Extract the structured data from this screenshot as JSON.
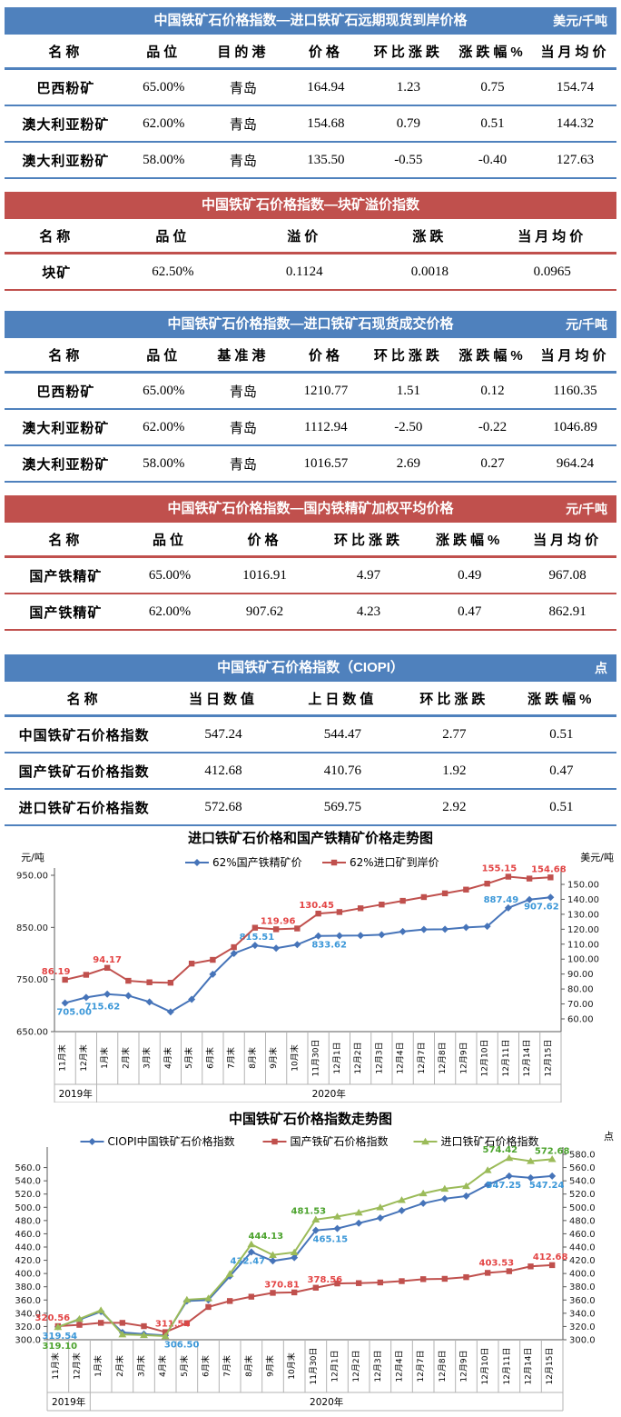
{
  "tables": [
    {
      "theme": "blue",
      "title": "中国铁矿石价格指数—进口铁矿石远期现货到岸价格",
      "unit": "美元/千吨",
      "columns": [
        "名称",
        "品位",
        "目的港",
        "价格",
        "环比涨跌",
        "涨跌幅%",
        "当月均价"
      ],
      "rows": [
        [
          "巴西粉矿",
          "65.00%",
          "青岛",
          "164.94",
          "1.23",
          "0.75",
          "154.74"
        ],
        [
          "澳大利亚粉矿",
          "62.00%",
          "青岛",
          "154.68",
          "0.79",
          "0.51",
          "144.32"
        ],
        [
          "澳大利亚粉矿",
          "58.00%",
          "青岛",
          "135.50",
          "-0.55",
          "-0.40",
          "127.63"
        ]
      ]
    },
    {
      "theme": "red",
      "title": "中国铁矿石价格指数—块矿溢价指数",
      "unit": "",
      "columns": [
        "名称",
        "品位",
        "溢价",
        "涨跌",
        "当月均价"
      ],
      "rows": [
        [
          "块矿",
          "62.50%",
          "0.1124",
          "0.0018",
          "0.0965"
        ]
      ]
    },
    {
      "theme": "blue",
      "title": "中国铁矿石价格指数—进口铁矿石现货成交价格",
      "unit": "元/千吨",
      "columns": [
        "名称",
        "品位",
        "基准港",
        "价格",
        "环比涨跌",
        "涨跌幅%",
        "当月均价"
      ],
      "rows": [
        [
          "巴西粉矿",
          "65.00%",
          "青岛",
          "1210.77",
          "1.51",
          "0.12",
          "1160.35"
        ],
        [
          "澳大利亚粉矿",
          "62.00%",
          "青岛",
          "1112.94",
          "-2.50",
          "-0.22",
          "1046.89"
        ],
        [
          "澳大利亚粉矿",
          "58.00%",
          "青岛",
          "1016.57",
          "2.69",
          "0.27",
          "964.24"
        ]
      ]
    },
    {
      "theme": "red",
      "title": "中国铁矿石价格指数—国内铁精矿加权平均价格",
      "unit": "元/千吨",
      "columns": [
        "名称",
        "品位",
        "价格",
        "环比涨跌",
        "涨跌幅%",
        "当月均价"
      ],
      "rows": [
        [
          "国产铁精矿",
          "65.00%",
          "1016.91",
          "4.97",
          "0.49",
          "967.08"
        ],
        [
          "国产铁精矿",
          "62.00%",
          "907.62",
          "4.23",
          "0.47",
          "862.91"
        ]
      ]
    },
    {
      "theme": "blue",
      "title": "中国铁矿石价格指数（CIOPI）",
      "unit": "点",
      "columns": [
        "名称",
        "当日数值",
        "上日数值",
        "环比涨跌",
        "涨跌幅%"
      ],
      "rows": [
        [
          "中国铁矿石价格指数",
          "547.24",
          "544.47",
          "2.77",
          "0.51"
        ],
        [
          "国产铁矿石价格指数",
          "412.68",
          "410.76",
          "1.92",
          "0.47"
        ],
        [
          "进口铁矿石价格指数",
          "572.68",
          "569.75",
          "2.92",
          "0.51"
        ]
      ]
    }
  ],
  "chart_data": [
    {
      "type": "line",
      "title": "进口铁矿石价格和国产铁精矿价格走势图",
      "left_axis": {
        "unit": "元/吨",
        "min": 650,
        "max": 950,
        "ticks": [
          950,
          850,
          750,
          650
        ],
        "decimals": 2
      },
      "right_axis": {
        "unit": "美元/吨",
        "min": 60,
        "max": 150,
        "ticks": [
          150,
          140,
          130,
          120,
          110,
          100,
          90,
          80,
          70,
          60
        ],
        "decimals": 2
      },
      "categories": [
        "11月末",
        "12月末",
        "1月末",
        "2月末",
        "3月末",
        "4月末",
        "5月末",
        "6月末",
        "7月末",
        "8月末",
        "9月末",
        "10月末",
        "11月30日",
        "12月1日",
        "12月2日",
        "12月3日",
        "12月4日",
        "12月7日",
        "12月8日",
        "12月9日",
        "12月10日",
        "12月11日",
        "12月14日",
        "12月15日"
      ],
      "year_groups": [
        {
          "label": "2019年",
          "span": 2
        },
        {
          "label": "2020年",
          "span": 22
        }
      ],
      "legend_position": "top",
      "grid": false,
      "series": [
        {
          "name": "62%国产铁精矿价",
          "axis": "left",
          "color": "#4674b9",
          "label_color": "#3b97d8",
          "marker": "diamond",
          "values": [
            705.0,
            715.62,
            722,
            719,
            707,
            688,
            712,
            760,
            800,
            815.51,
            810,
            817,
            833.62,
            834,
            834.5,
            836,
            842,
            846,
            846.5,
            850,
            852,
            887.49,
            903.39,
            907.62
          ],
          "point_labels": [
            {
              "index": 0,
              "text": "705.00",
              "pos": "below",
              "dx": 10
            },
            {
              "index": 1,
              "text": "715.62",
              "pos": "below",
              "dx": 18
            },
            {
              "index": 9,
              "text": "815.51",
              "pos": "above",
              "dx": 2
            },
            {
              "index": 12,
              "text": "833.62",
              "pos": "below",
              "dx": 12
            },
            {
              "index": 21,
              "text": "887.49",
              "pos": "above",
              "dx": -8
            },
            {
              "index": 23,
              "text": "907.62",
              "pos": "below",
              "dx": -10
            }
          ]
        },
        {
          "name": "62%进口矿到岸价",
          "axis": "right",
          "color": "#c0504d",
          "label_color": "#e34545",
          "marker": "square",
          "values": [
            86.19,
            89.5,
            94.17,
            85.5,
            84.5,
            84.2,
            97,
            99.5,
            108,
            121,
            119.96,
            120.5,
            130.45,
            131.5,
            134,
            136.5,
            139,
            141.5,
            144,
            146.5,
            150.5,
            155.15,
            153.89,
            154.68
          ],
          "point_labels": [
            {
              "index": 0,
              "text": "86.19",
              "pos": "above",
              "dx": -10
            },
            {
              "index": 2,
              "text": "94.17",
              "pos": "above",
              "dx": 0
            },
            {
              "index": 10,
              "text": "119.96",
              "pos": "above",
              "dx": 2
            },
            {
              "index": 12,
              "text": "130.45",
              "pos": "above",
              "dx": -2
            },
            {
              "index": 21,
              "text": "155.15",
              "pos": "above",
              "dx": -10
            },
            {
              "index": 23,
              "text": "154.68",
              "pos": "above",
              "dx": -2
            }
          ]
        }
      ]
    },
    {
      "type": "line",
      "title": "中国铁矿石价格指数走势图",
      "left_axis": {
        "unit": "",
        "min": 300,
        "max": 560,
        "ticks": [
          560,
          540,
          520,
          500,
          480,
          460,
          440,
          420,
          400,
          380,
          360,
          340,
          320,
          300
        ],
        "decimals": 1
      },
      "right_axis": {
        "unit": "点",
        "min": 300,
        "max": 580,
        "ticks": [
          580,
          560,
          540,
          520,
          500,
          480,
          460,
          440,
          420,
          400,
          380,
          360,
          340,
          320,
          300
        ],
        "decimals": 1
      },
      "categories": [
        "11月末",
        "12月末",
        "1月末",
        "2月末",
        "3月末",
        "4月末",
        "5月末",
        "6月末",
        "7月末",
        "8月末",
        "9月末",
        "10月末",
        "11月30日",
        "12月1日",
        "12月2日",
        "12月3日",
        "12月4日",
        "12月7日",
        "12月8日",
        "12月9日",
        "12月10日",
        "12月11日",
        "12月14日",
        "12月15日"
      ],
      "year_groups": [
        {
          "label": "2019年",
          "span": 2
        },
        {
          "label": "2020年",
          "span": 22
        }
      ],
      "legend_position": "top",
      "grid": false,
      "series": [
        {
          "name": "CIOPI中国铁矿石价格指数",
          "axis": "shared",
          "color": "#4674b9",
          "label_color": "#3b97d8",
          "marker": "diamond",
          "values": [
            319.54,
            330.5,
            342.5,
            311,
            308.5,
            306.5,
            358.5,
            360,
            396,
            432.47,
            419,
            424,
            465.15,
            468,
            476,
            484,
            495,
            506,
            513,
            517,
            534,
            547.25,
            544.47,
            547.24
          ],
          "point_labels": [
            {
              "index": 0,
              "text": "319.54",
              "pos": "below",
              "dx": 2,
              "dy": 0
            },
            {
              "index": 5,
              "text": "306.50",
              "pos": "below",
              "dx": 18
            },
            {
              "index": 9,
              "text": "432.47",
              "pos": "below",
              "dx": -4
            },
            {
              "index": 12,
              "text": "465.15",
              "pos": "below",
              "dx": 16
            },
            {
              "index": 21,
              "text": "547.25",
              "pos": "below",
              "dx": -6
            },
            {
              "index": 23,
              "text": "547.24",
              "pos": "below",
              "dx": -6
            }
          ]
        },
        {
          "name": "国产铁矿石价格指数",
          "axis": "shared",
          "color": "#c0504d",
          "label_color": "#e34545",
          "marker": "square",
          "values": [
            320.56,
            322.5,
            325.5,
            325.5,
            320.5,
            311.54,
            325,
            349.5,
            358.5,
            365,
            370.81,
            371.5,
            378.56,
            385,
            385.5,
            386.5,
            388.5,
            391.5,
            392,
            394.5,
            401,
            403.53,
            410.76,
            412.68
          ],
          "point_labels": [
            {
              "index": 0,
              "text": "320.56",
              "pos": "above",
              "dx": -6
            },
            {
              "index": 5,
              "text": "311.54",
              "pos": "above",
              "dx": 8
            },
            {
              "index": 10,
              "text": "370.81",
              "pos": "above",
              "dx": 10
            },
            {
              "index": 12,
              "text": "378.56",
              "pos": "above",
              "dx": 10
            },
            {
              "index": 21,
              "text": "403.53",
              "pos": "above",
              "dx": -14
            },
            {
              "index": 23,
              "text": "412.68",
              "pos": "above",
              "dx": -2
            }
          ]
        },
        {
          "name": "进口铁矿石价格指数",
          "axis": "shared",
          "color": "#9bbb59",
          "label_color": "#4ca32e",
          "marker": "triangle",
          "values": [
            319.1,
            331.5,
            344.5,
            308,
            307,
            305.5,
            360.5,
            362.5,
            399.5,
            444.13,
            428,
            432,
            481.53,
            486,
            492,
            500,
            511,
            521,
            528,
            532,
            556,
            574.42,
            569.75,
            572.68
          ],
          "point_labels": [
            {
              "index": 0,
              "text": "319.10",
              "pos": "below",
              "dx": 2,
              "dy": 11
            },
            {
              "index": 9,
              "text": "444.13",
              "pos": "above",
              "dx": 16
            },
            {
              "index": 12,
              "text": "481.53",
              "pos": "above",
              "dx": -8
            },
            {
              "index": 21,
              "text": "574.42",
              "pos": "above",
              "dx": -10
            },
            {
              "index": 23,
              "text": "572.68",
              "pos": "above",
              "dx": 0
            }
          ]
        }
      ]
    }
  ]
}
